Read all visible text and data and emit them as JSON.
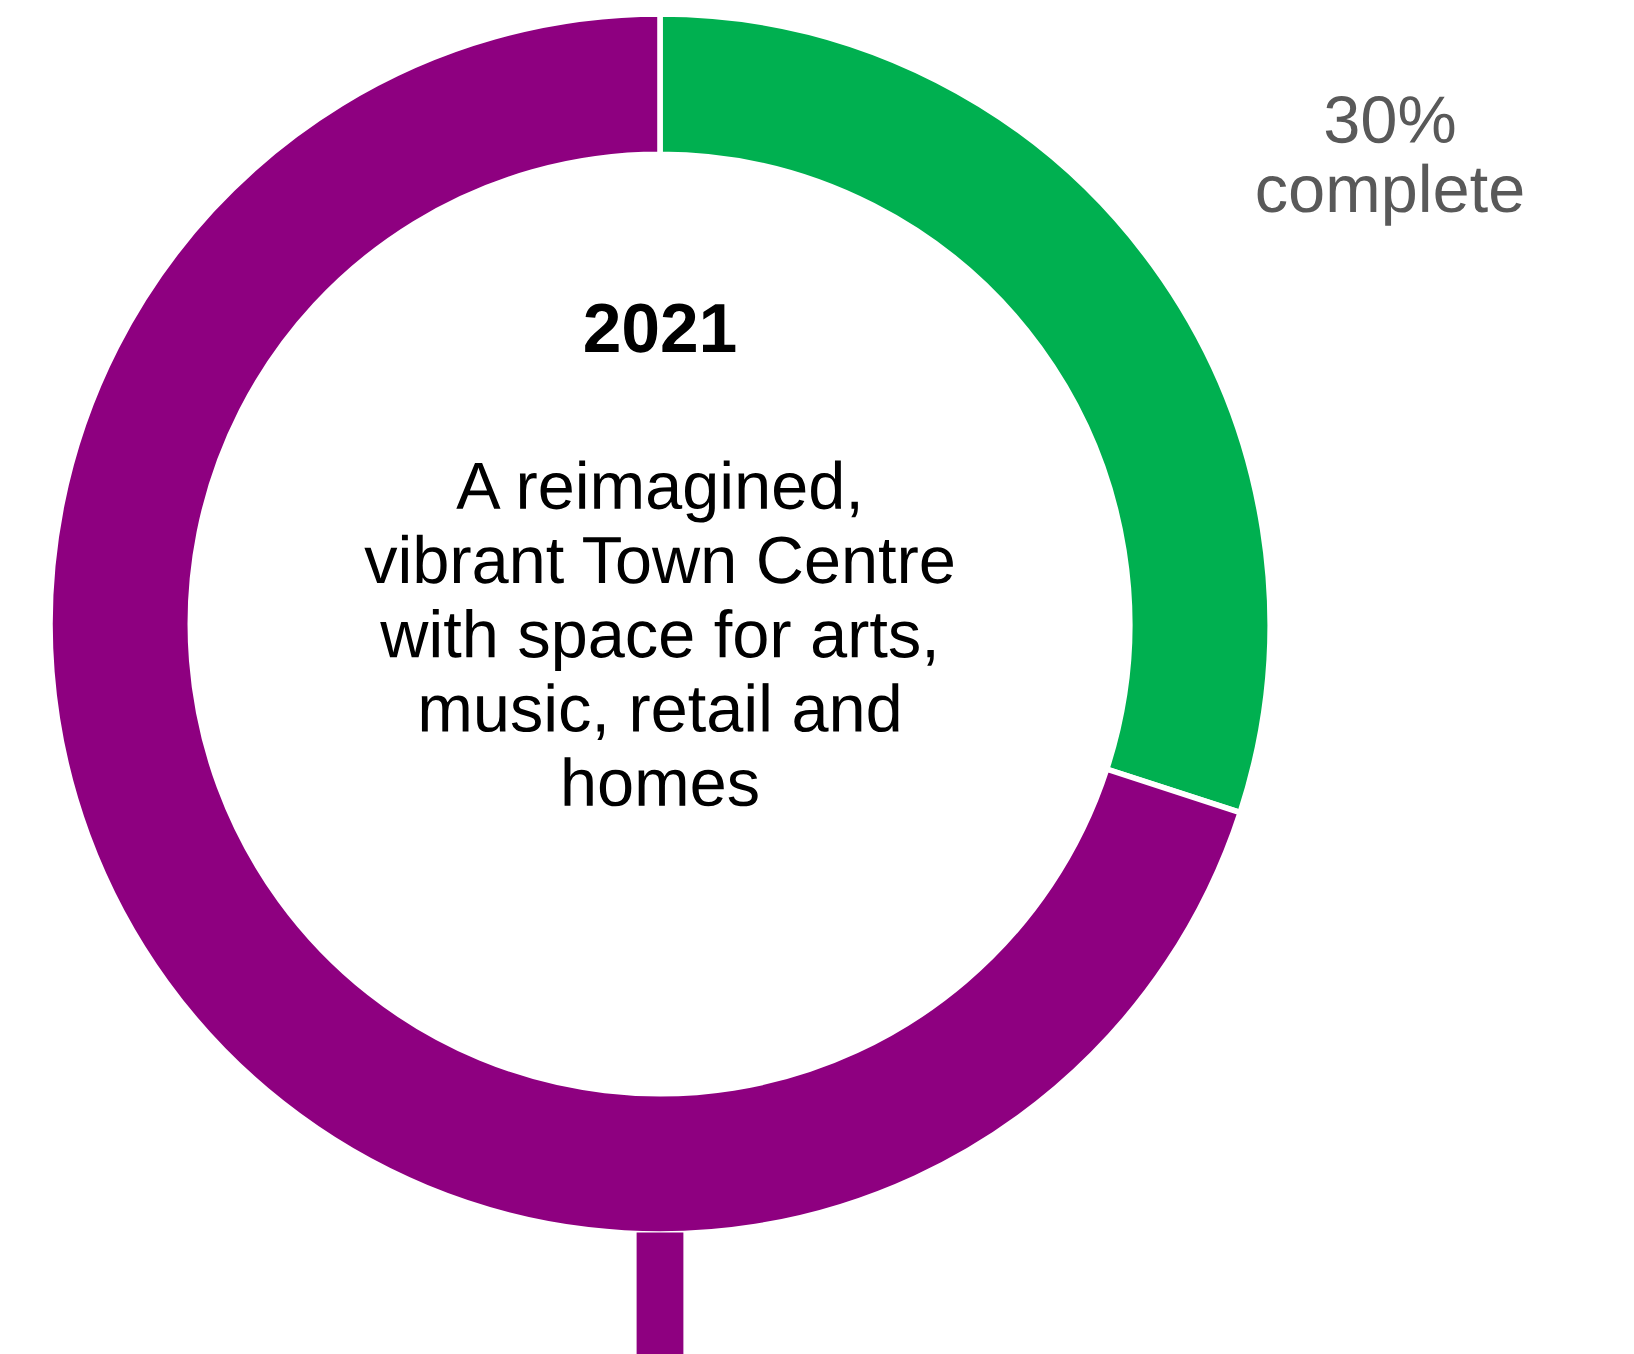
{
  "chart_data": {
    "type": "donut",
    "title": "2021",
    "subtitle": "A reimagined,\nvibrant Town Centre\nwith space for arts,\nmusic, retail and\nhomes",
    "categories": [
      null,
      null
    ],
    "values": [
      30,
      70
    ],
    "colors": [
      "#00b050",
      "#8e0080"
    ],
    "value_labels": [
      "30%\ncomplete",
      null
    ],
    "legend": false
  }
}
